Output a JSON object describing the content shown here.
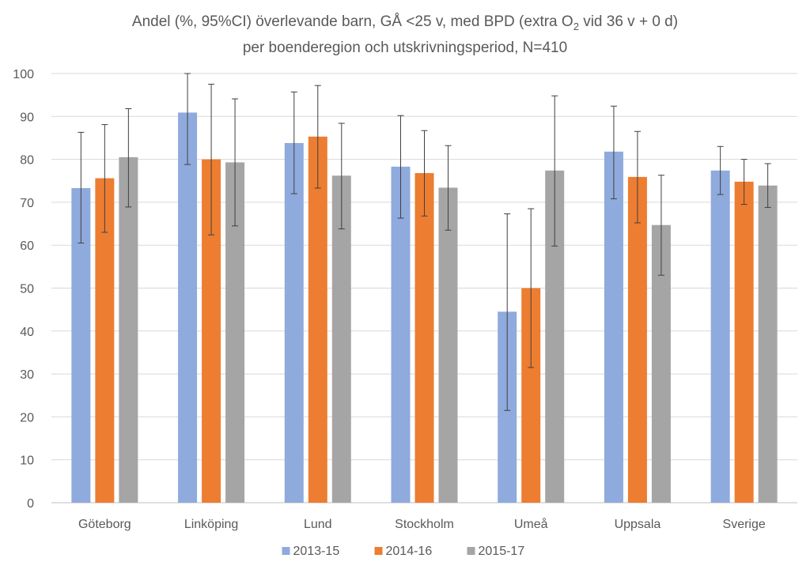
{
  "chart_data": {
    "type": "bar",
    "title": {
      "line1_prefix": "Andel (%, 95%CI) överlevande barn, GÅ <25 v, med BPD (extra O",
      "line1_sub": "2",
      "line1_suffix": " vid 36 v + 0 d)",
      "line2": "per boenderegion och utskrivningsperiod, N=410"
    },
    "xlabel": "",
    "ylabel": "",
    "ylim": [
      0,
      100
    ],
    "yticks": [
      0,
      10,
      20,
      30,
      40,
      50,
      60,
      70,
      80,
      90,
      100
    ],
    "grid": true,
    "legend_position": "bottom",
    "categories": [
      "Göteborg",
      "Linköping",
      "Lund",
      "Stockholm",
      "Umeå",
      "Uppsala",
      "Sverige"
    ],
    "series": [
      {
        "name": "2013-15",
        "color": "#8faadc",
        "values": [
          73.3,
          90.9,
          83.8,
          78.3,
          44.5,
          81.8,
          77.4
        ],
        "ci_low": [
          60.5,
          78.8,
          72.0,
          66.3,
          21.5,
          70.8,
          71.8
        ],
        "ci_high": [
          86.3,
          100,
          95.7,
          90.2,
          67.3,
          92.4,
          83.0
        ]
      },
      {
        "name": "2014-16",
        "color": "#ed7d31",
        "values": [
          75.6,
          80.0,
          85.3,
          76.8,
          50.0,
          75.9,
          74.8
        ],
        "ci_low": [
          63.0,
          62.4,
          73.3,
          66.8,
          31.5,
          65.2,
          69.5
        ],
        "ci_high": [
          88.1,
          97.5,
          97.2,
          86.7,
          68.5,
          86.5,
          80.0
        ]
      },
      {
        "name": "2015-17",
        "color": "#a5a5a5",
        "values": [
          80.5,
          79.3,
          76.2,
          73.4,
          77.4,
          64.7,
          73.9
        ],
        "ci_low": [
          68.9,
          64.5,
          63.8,
          63.5,
          59.8,
          53.0,
          68.8
        ],
        "ci_high": [
          91.8,
          94.1,
          88.4,
          83.2,
          94.8,
          76.3,
          79.0
        ]
      }
    ]
  }
}
